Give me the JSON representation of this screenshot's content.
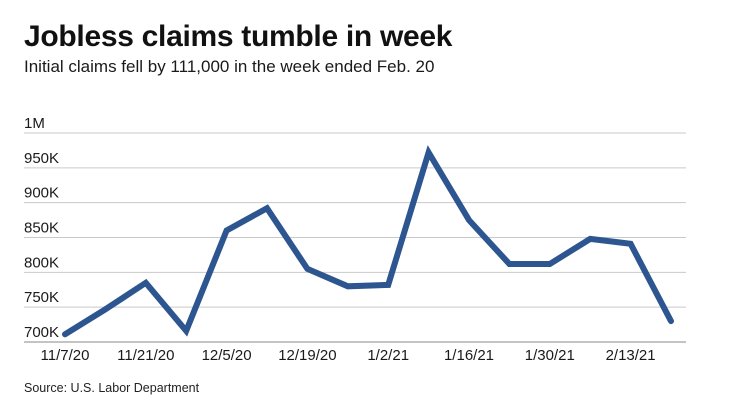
{
  "header": {
    "title": "Jobless claims tumble in week",
    "subtitle": "Initial claims fell by 111,000 in the week ended Feb. 20"
  },
  "footer": {
    "source": "Source: U.S. Labor Department"
  },
  "colors": {
    "line": "#2d5590",
    "grid": "#c9c9c9"
  },
  "chart_data": {
    "type": "line",
    "title": "Jobless claims tumble in week",
    "subtitle": "Initial claims fell by 111,000 in the week ended Feb. 20",
    "xlabel": "",
    "ylabel": "",
    "ylim": [
      700000,
      1000000
    ],
    "yticks": [
      {
        "value": 700000,
        "label": "700K"
      },
      {
        "value": 750000,
        "label": "750K"
      },
      {
        "value": 800000,
        "label": "800K"
      },
      {
        "value": 850000,
        "label": "850K"
      },
      {
        "value": 900000,
        "label": "900K"
      },
      {
        "value": 950000,
        "label": "950K"
      },
      {
        "value": 1000000,
        "label": "1M"
      }
    ],
    "xticks": [
      "11/7/20",
      "11/21/20",
      "12/5/20",
      "12/19/20",
      "1/2/21",
      "1/16/21",
      "1/30/21",
      "2/13/21"
    ],
    "grid": true,
    "series": [
      {
        "x": [
          "11/7/20",
          "11/14/20",
          "11/21/20",
          "11/28/20",
          "12/5/20",
          "12/12/20",
          "12/19/20",
          "12/26/20",
          "1/2/21",
          "1/9/21",
          "1/16/21",
          "1/23/21",
          "1/30/21",
          "2/6/21",
          "2/13/21",
          "2/20/21"
        ],
        "values": [
          711000,
          747000,
          785000,
          716000,
          860000,
          892000,
          805000,
          780000,
          782000,
          972000,
          875000,
          812000,
          812000,
          848000,
          841000,
          730000
        ]
      }
    ]
  }
}
